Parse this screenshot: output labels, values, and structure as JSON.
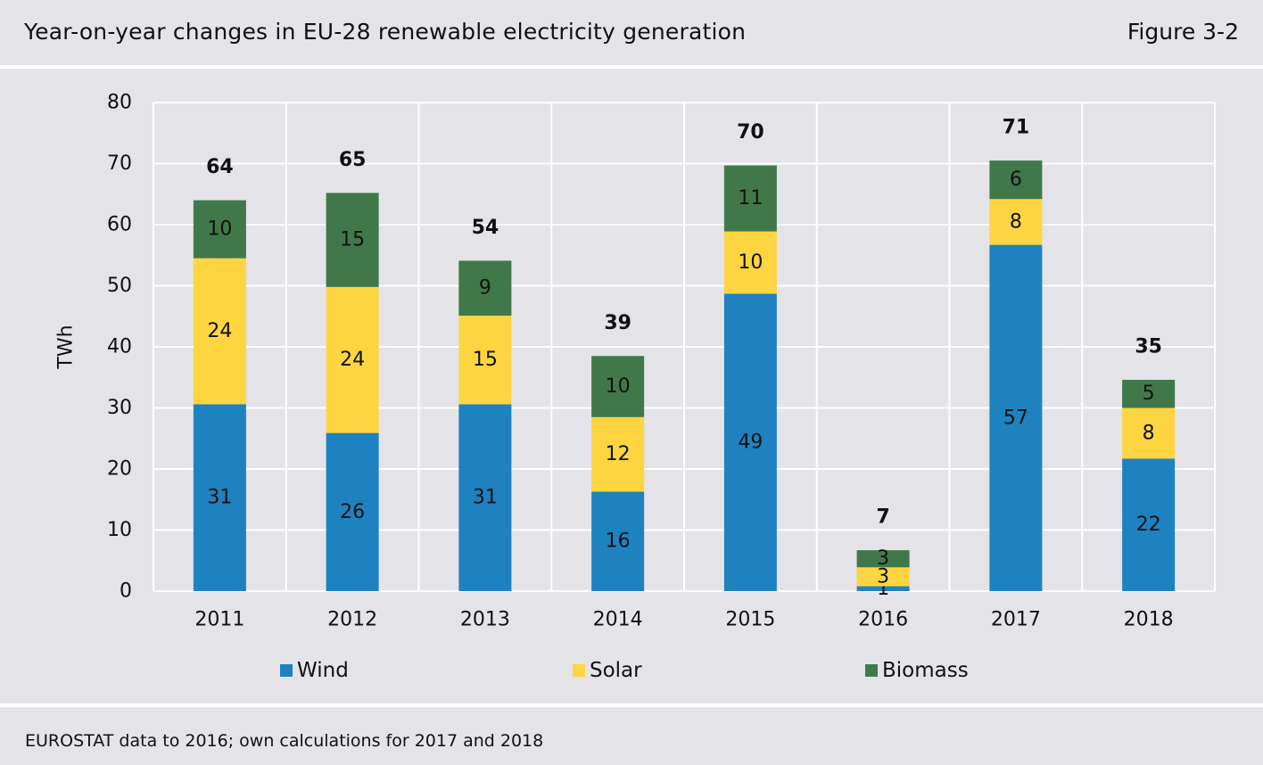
{
  "header": {
    "title": "Year-on-year changes in EU-28 renewable electricity generation",
    "figure_label": "Figure 3-2"
  },
  "footer": {
    "source": "EUROSTAT data to 2016; own calculations for 2017 and 2018"
  },
  "colors": {
    "wind": "#1f82c0",
    "solar": "#fdd540",
    "biomass": "#41784a",
    "grid": "#ffffff",
    "background": "#e3e3e8"
  },
  "chart_data": {
    "type": "bar",
    "stacked": true,
    "title": "Year-on-year changes in EU-28 renewable electricity generation",
    "xlabel": "",
    "ylabel": "TWh",
    "ylim": [
      0,
      80
    ],
    "yticks": [
      0,
      10,
      20,
      30,
      40,
      50,
      60,
      70,
      80
    ],
    "grid": true,
    "legend_position": "bottom",
    "categories": [
      "2011",
      "2012",
      "2013",
      "2014",
      "2015",
      "2016",
      "2017",
      "2018"
    ],
    "series": [
      {
        "name": "Wind",
        "color": "#1f82c0",
        "values": [
          30.6,
          25.9,
          30.6,
          16.3,
          48.7,
          0.8,
          56.7,
          21.7
        ],
        "labels": [
          "31",
          "26",
          "31",
          "16",
          "49",
          "1",
          "57",
          "22"
        ]
      },
      {
        "name": "Solar",
        "color": "#fdd540",
        "values": [
          23.9,
          23.9,
          14.5,
          12.2,
          10.2,
          3.1,
          7.5,
          8.3
        ],
        "labels": [
          "24",
          "24",
          "15",
          "12",
          "10",
          "3",
          "8",
          "8"
        ]
      },
      {
        "name": "Biomass",
        "color": "#41784a",
        "values": [
          9.5,
          15.4,
          9.0,
          10.0,
          10.8,
          2.8,
          6.3,
          4.6
        ],
        "labels": [
          "10",
          "15",
          "9",
          "10",
          "11",
          "3",
          "6",
          "5"
        ]
      }
    ],
    "totals": [
      "64",
      "65",
      "54",
      "39",
      "70",
      "7",
      "71",
      "35"
    ]
  }
}
